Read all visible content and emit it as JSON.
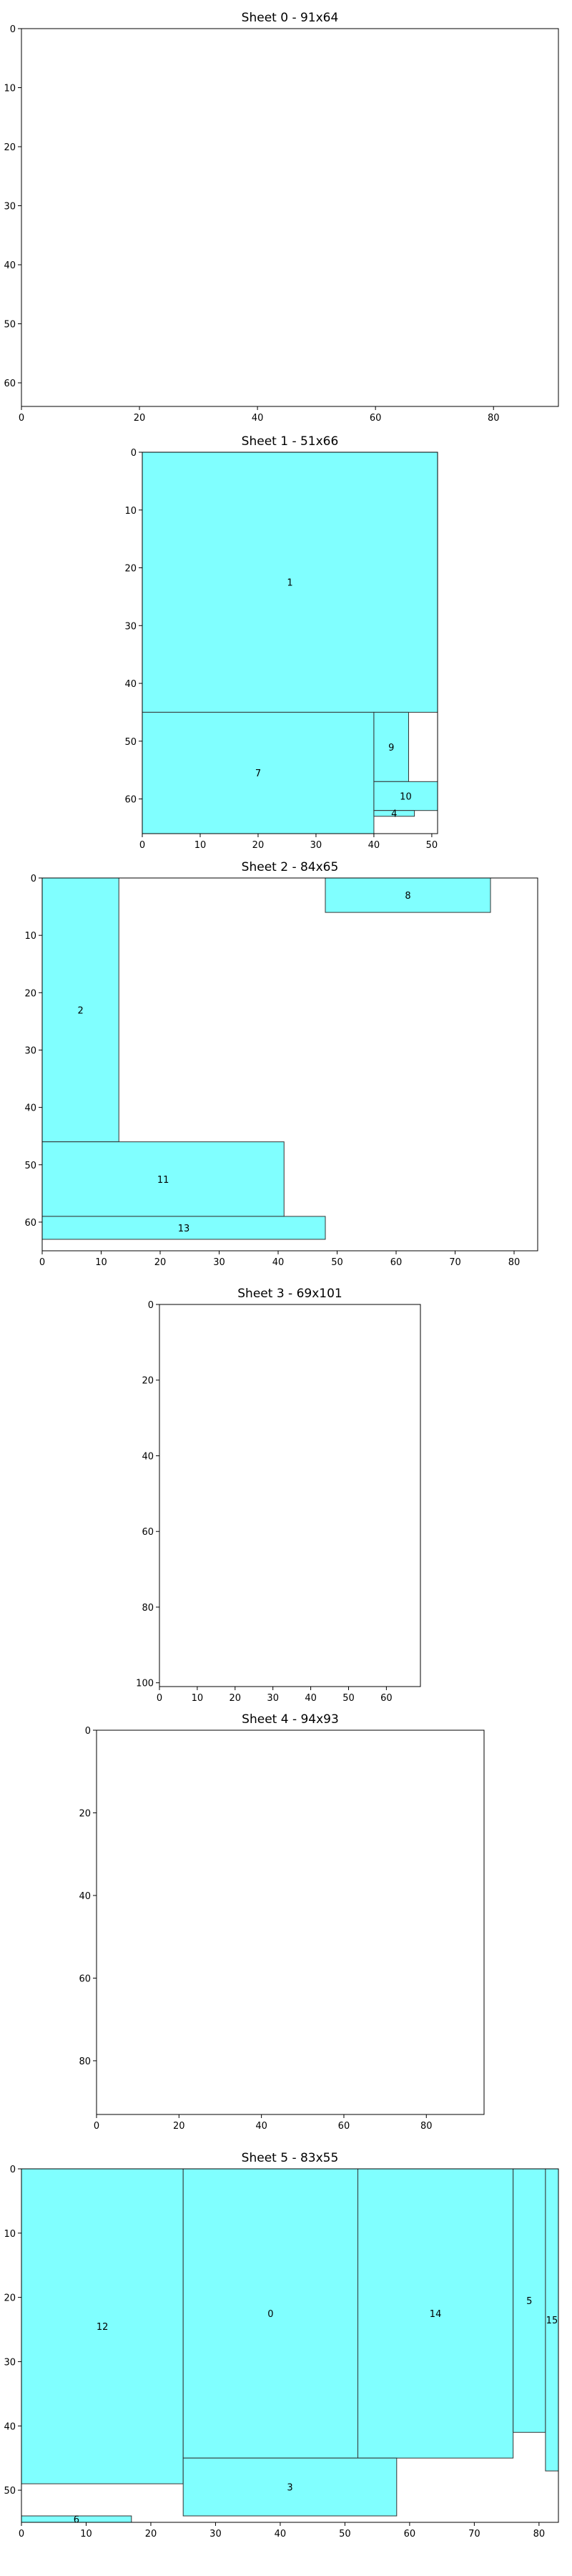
{
  "colors": {
    "fill": "#80FFFF",
    "edge": "#333333",
    "frame": "#000000",
    "background": "#FFFFFF"
  },
  "chart_data": [
    {
      "type": "rectangles",
      "title": "Sheet 0 - 91x64",
      "xlim": [
        0,
        91
      ],
      "ylim": [
        64,
        0
      ],
      "y_inverted": true,
      "xticks": [
        0,
        20,
        40,
        60,
        80
      ],
      "yticks": [
        0,
        10,
        20,
        30,
        40,
        50,
        60
      ],
      "rects": []
    },
    {
      "type": "rectangles",
      "title": "Sheet 1 - 51x66",
      "xlim": [
        0,
        51
      ],
      "ylim": [
        66,
        0
      ],
      "y_inverted": true,
      "xticks": [
        0,
        10,
        20,
        30,
        40,
        50
      ],
      "yticks": [
        0,
        10,
        20,
        30,
        40,
        50,
        60
      ],
      "rects": [
        {
          "label": "1",
          "x": 0,
          "y": 0,
          "w": 51,
          "h": 45
        },
        {
          "label": "7",
          "x": 0,
          "y": 45,
          "w": 40,
          "h": 21
        },
        {
          "label": "9",
          "x": 40,
          "y": 45,
          "w": 6,
          "h": 12
        },
        {
          "label": "10",
          "x": 40,
          "y": 57,
          "w": 11,
          "h": 5
        },
        {
          "label": "4",
          "x": 40,
          "y": 62,
          "w": 7,
          "h": 1
        }
      ]
    },
    {
      "type": "rectangles",
      "title": "Sheet 2 - 84x65",
      "xlim": [
        0,
        84
      ],
      "ylim": [
        65,
        0
      ],
      "y_inverted": true,
      "xticks": [
        0,
        10,
        20,
        30,
        40,
        50,
        60,
        70,
        80
      ],
      "yticks": [
        0,
        10,
        20,
        30,
        40,
        50,
        60
      ],
      "rects": [
        {
          "label": "2",
          "x": 0,
          "y": 0,
          "w": 13,
          "h": 46
        },
        {
          "label": "8",
          "x": 48,
          "y": 0,
          "w": 28,
          "h": 6
        },
        {
          "label": "11",
          "x": 0,
          "y": 46,
          "w": 41,
          "h": 13
        },
        {
          "label": "13",
          "x": 0,
          "y": 59,
          "w": 48,
          "h": 4
        }
      ]
    },
    {
      "type": "rectangles",
      "title": "Sheet 3 - 69x101",
      "xlim": [
        0,
        69
      ],
      "ylim": [
        101,
        0
      ],
      "y_inverted": true,
      "xticks": [
        0,
        10,
        20,
        30,
        40,
        50,
        60
      ],
      "yticks": [
        0,
        20,
        40,
        60,
        80,
        100
      ],
      "rects": []
    },
    {
      "type": "rectangles",
      "title": "Sheet 4 - 94x93",
      "xlim": [
        0,
        94
      ],
      "ylim": [
        93,
        0
      ],
      "y_inverted": true,
      "xticks": [
        0,
        20,
        40,
        60,
        80
      ],
      "yticks": [
        0,
        20,
        40,
        60,
        80
      ],
      "rects": []
    },
    {
      "type": "rectangles",
      "title": "Sheet 5 - 83x55",
      "xlim": [
        0,
        83
      ],
      "ylim": [
        55,
        0
      ],
      "y_inverted": true,
      "xticks": [
        0,
        10,
        20,
        30,
        40,
        50,
        60,
        70,
        80
      ],
      "yticks": [
        0,
        10,
        20,
        30,
        40,
        50
      ],
      "rects": [
        {
          "label": "12",
          "x": 0,
          "y": 0,
          "w": 25,
          "h": 49
        },
        {
          "label": "0",
          "x": 25,
          "y": 0,
          "w": 27,
          "h": 45
        },
        {
          "label": "14",
          "x": 52,
          "y": 0,
          "w": 24,
          "h": 45
        },
        {
          "label": "5",
          "x": 76,
          "y": 0,
          "w": 5,
          "h": 41
        },
        {
          "label": "15",
          "x": 81,
          "y": 0,
          "w": 2,
          "h": 47
        },
        {
          "label": "3",
          "x": 25,
          "y": 45,
          "w": 33,
          "h": 9
        },
        {
          "label": "6",
          "x": 0,
          "y": 54,
          "w": 17,
          "h": 1
        }
      ]
    }
  ]
}
